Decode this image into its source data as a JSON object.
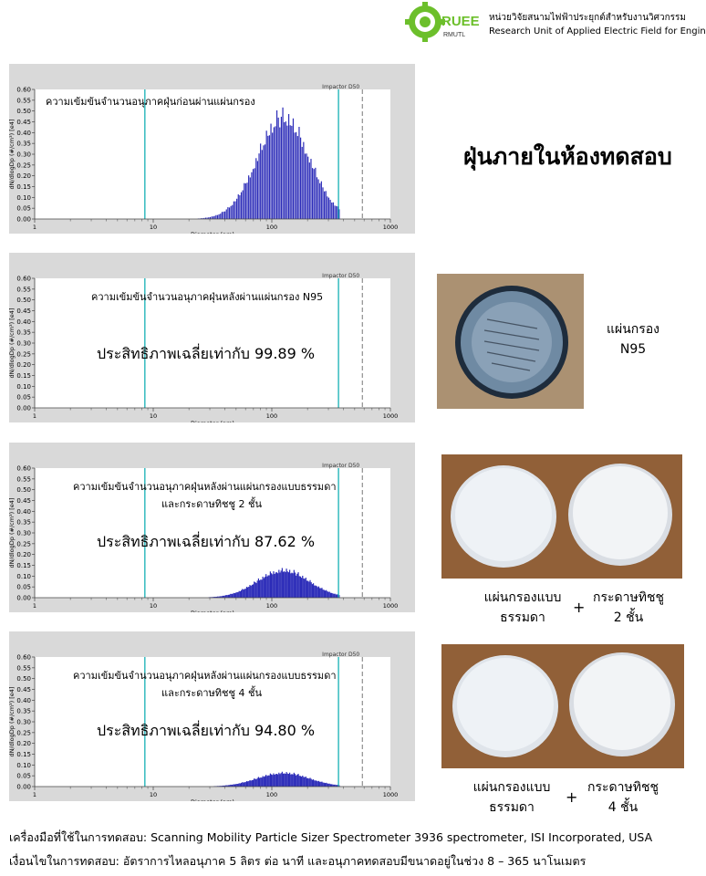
{
  "header": {
    "logo_text": "RUEE",
    "logo_sub": "RMUTL",
    "title_th": "หน่วยวิจัยสนามไฟฟ้าประยุกต์สำหรับงานวิศวกรรม",
    "title_en": "Research Unit of Applied Electric Field for Engineering"
  },
  "section_title": "ฝุ่นภายในห้องทดสอบ",
  "colors": {
    "bars": "#2b2bb8",
    "cyan_line": "#16b0b5",
    "panel_bg": "#d9d9d9"
  },
  "photos": {
    "n95_caption_line1": "แผ่นกรอง",
    "n95_caption_line2": "N95",
    "pair1_left_line1": "แผ่นกรองแบบ",
    "pair1_left_line2": "ธรรมดา",
    "pair1_plus": "+",
    "pair1_right_line1": "กระดาษทิชชู",
    "pair1_right_line2": "2 ชั้น",
    "pair2_left_line1": "แผ่นกรองแบบ",
    "pair2_left_line2": "ธรรมดา",
    "pair2_plus": "+",
    "pair2_right_line1": "กระดาษทิชชู",
    "pair2_right_line2": "4 ชั้น"
  },
  "footer": {
    "line1": "เครื่องมือที่ใช้ในการทดสอบ: Scanning Mobility Particle Sizer Spectrometer 3936 spectrometer, ISI Incorporated, USA",
    "line2": "เงื่อนไขในการทดสอบ: อัตราการไหลอนุภาค 5 ลิตร ต่อ นาที และอนุภาคทดสอบมีขนาดอยู่ในช่วง 8 – 365 นาโนเมตร"
  },
  "chart_data": [
    {
      "type": "bar",
      "annotation": "ความเข้มข้นจำนวนอนุภาคฝุ่นก่อนผ่านแผ่นกรอง",
      "efficiency_text": "",
      "xlabel": "Diameter (nm)",
      "ylabel": "dN/dlogDp (#/cm³) [e4]",
      "xscale": "log",
      "xlim": [
        1,
        1000
      ],
      "ylim": [
        0,
        0.6
      ],
      "xticks": [
        "1",
        "10",
        "100",
        "1000"
      ],
      "yticks": [
        "0.00",
        "0.05",
        "0.10",
        "0.15",
        "0.20",
        "0.25",
        "0.30",
        "0.35",
        "0.40",
        "0.45",
        "0.50",
        "0.55",
        "0.60"
      ],
      "marker_label": "Impactor D50",
      "marker_x": 580,
      "range_lines": [
        8.5,
        365
      ],
      "peak": {
        "x": 125,
        "y": 0.52
      },
      "bar_range": [
        9,
        370
      ]
    },
    {
      "type": "bar",
      "annotation": "ความเข้มข้นจำนวนอนุภาคฝุ่นหลังผ่านแผ่นกรอง N95",
      "efficiency_text": "ประสิทธิภาพเฉลี่ยเท่ากับ 99.89 %",
      "xlabel": "Diameter (nm)",
      "ylabel": "dN/dlogDp (#/cm³) [e4]",
      "xscale": "log",
      "xlim": [
        1,
        1000
      ],
      "ylim": [
        0,
        0.6
      ],
      "xticks": [
        "1",
        "10",
        "100",
        "1000"
      ],
      "yticks": [
        "0.00",
        "0.05",
        "0.10",
        "0.15",
        "0.20",
        "0.25",
        "0.30",
        "0.35",
        "0.40",
        "0.45",
        "0.50",
        "0.55",
        "0.60"
      ],
      "marker_label": "Impactor D50",
      "marker_x": 580,
      "range_lines": [
        8.5,
        365
      ],
      "peak": {
        "x": 125,
        "y": 0.0
      },
      "bar_range": [
        9,
        370
      ]
    },
    {
      "type": "bar",
      "annotation": "ความเข้มข้นจำนวนอนุภาคฝุ่นหลังผ่านแผ่นกรองแบบธรรมดา",
      "annotation2": "และกระดาษทิชชู 2 ชั้น",
      "efficiency_text": "ประสิทธิภาพเฉลี่ยเท่ากับ 87.62 %",
      "xlabel": "Diameter (nm)",
      "ylabel": "dN/dlogDp (#/cm³) [e4]",
      "xscale": "log",
      "xlim": [
        1,
        1000
      ],
      "ylim": [
        0,
        0.6
      ],
      "xticks": [
        "1",
        "10",
        "100",
        "1000"
      ],
      "yticks": [
        "0.00",
        "0.05",
        "0.10",
        "0.15",
        "0.20",
        "0.25",
        "0.30",
        "0.35",
        "0.40",
        "0.45",
        "0.50",
        "0.55",
        "0.60"
      ],
      "marker_label": "Impactor D50",
      "marker_x": 580,
      "range_lines": [
        8.5,
        365
      ],
      "peak": {
        "x": 125,
        "y": 0.14
      },
      "bar_range": [
        25,
        370
      ]
    },
    {
      "type": "bar",
      "annotation": "ความเข้มข้นจำนวนอนุภาคฝุ่นหลังผ่านแผ่นกรองแบบธรรมดา",
      "annotation2": "และกระดาษทิชชู 4 ชั้น",
      "efficiency_text": "ประสิทธิภาพเฉลี่ยเท่ากับ 94.80 %",
      "xlabel": "Diameter (nm)",
      "ylabel": "dN/dlogDp (#/cm³) [e4]",
      "xscale": "log",
      "xlim": [
        1,
        1000
      ],
      "ylim": [
        0,
        0.6
      ],
      "xticks": [
        "1",
        "10",
        "100",
        "1000"
      ],
      "yticks": [
        "0.00",
        "0.05",
        "0.10",
        "0.15",
        "0.20",
        "0.25",
        "0.30",
        "0.35",
        "0.40",
        "0.45",
        "0.50",
        "0.55",
        "0.60"
      ],
      "marker_label": "Impactor D50",
      "marker_x": 580,
      "range_lines": [
        8.5,
        365
      ],
      "peak": {
        "x": 125,
        "y": 0.07
      },
      "bar_range": [
        25,
        370
      ]
    }
  ]
}
